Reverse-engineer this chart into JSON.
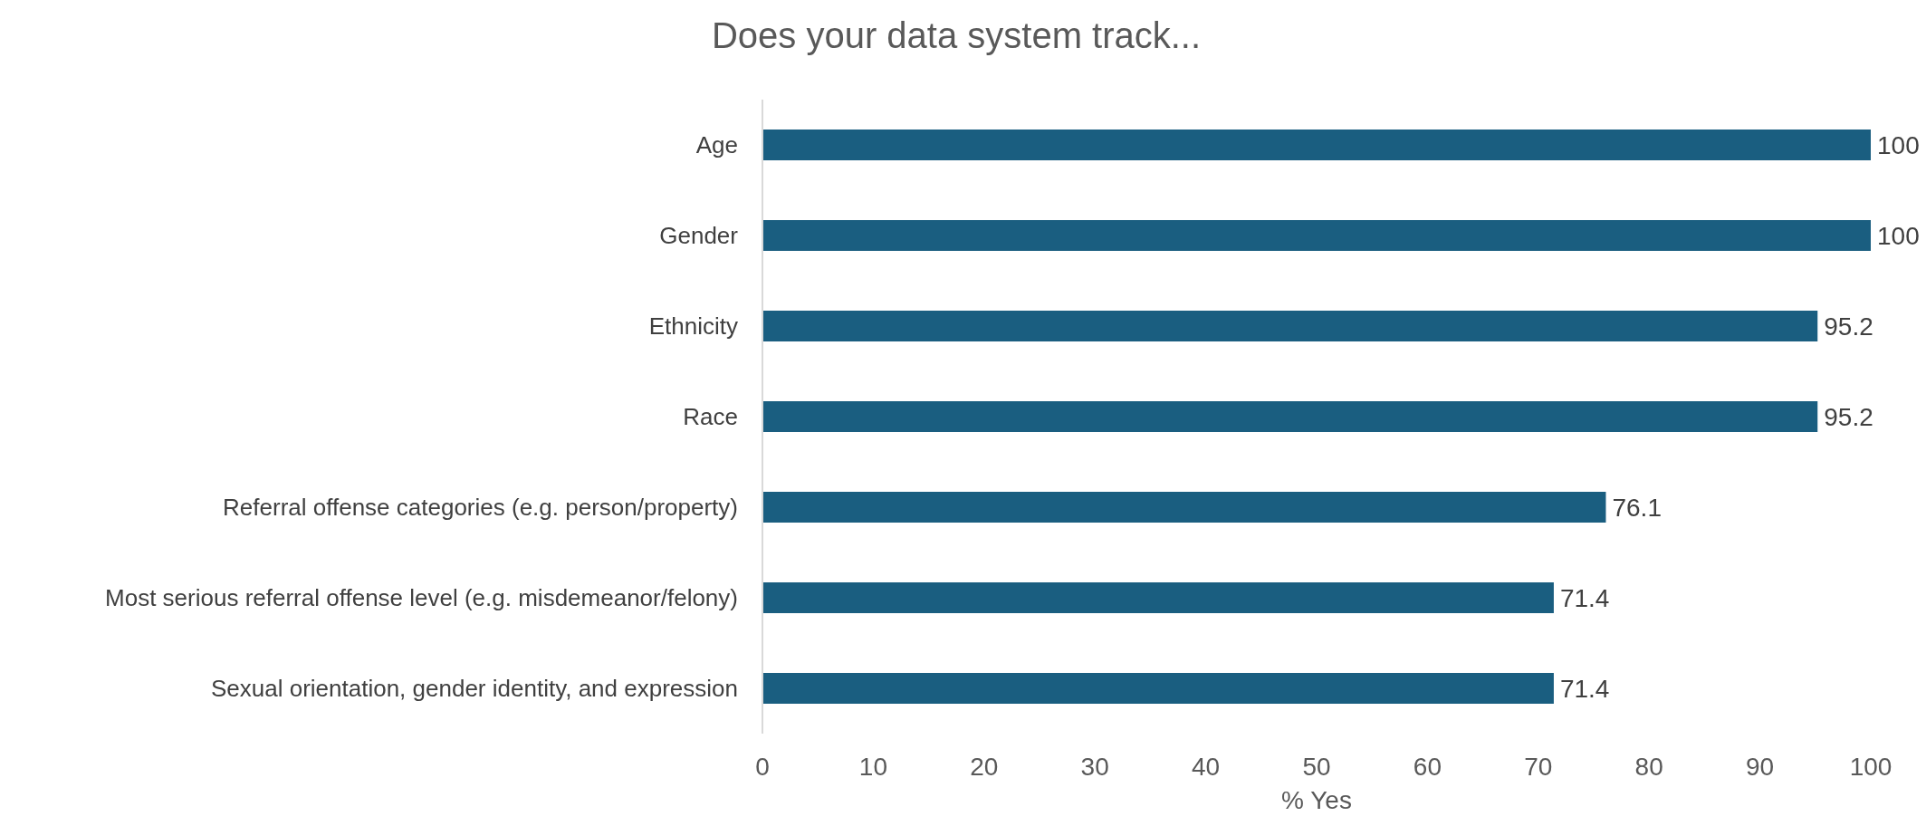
{
  "chart_data": {
    "type": "bar",
    "orientation": "horizontal",
    "title": "Does your data system track...",
    "xlabel": "% Yes",
    "categories": [
      "Age",
      "Gender",
      "Ethnicity",
      "Race",
      "Referral offense categories (e.g. person/property)",
      "Most serious referral offense level (e.g. misdemeanor/felony)",
      "Sexual orientation, gender identity, and expression"
    ],
    "values": [
      100,
      100,
      95.2,
      95.2,
      76.1,
      71.4,
      71.4
    ],
    "color": "#1a5e80",
    "xlim": [
      0,
      100
    ],
    "xticks": [
      0,
      10,
      20,
      30,
      40,
      50,
      60,
      70,
      80,
      90,
      100
    ],
    "data_labels": true
  }
}
